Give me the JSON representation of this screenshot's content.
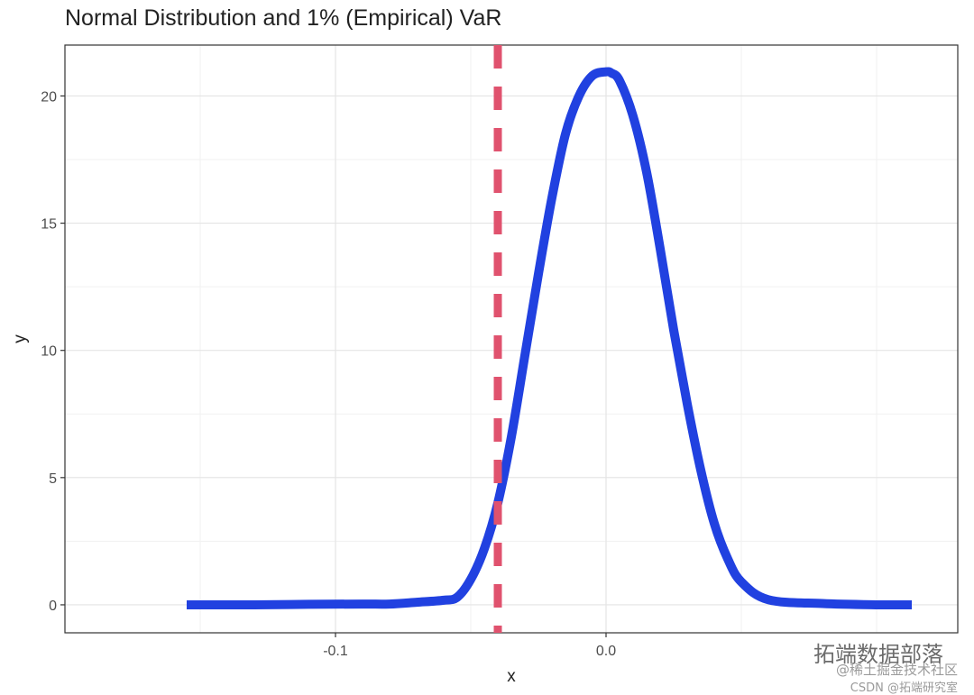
{
  "chart_data": {
    "type": "line",
    "title": "Normal Distribution and 1% (Empirical) VaR",
    "xlabel": "x",
    "ylabel": "y",
    "xlim": [
      -0.2,
      0.13
    ],
    "ylim": [
      -1.1,
      22
    ],
    "x_ticks": [
      -0.1,
      0.0
    ],
    "x_tick_labels": [
      "-0.1",
      "0.0"
    ],
    "y_ticks": [
      0,
      5,
      10,
      15,
      20
    ],
    "y_tick_labels": [
      "0",
      "5",
      "10",
      "15",
      "20"
    ],
    "grid": true,
    "series": [
      {
        "color": "#2141e0",
        "x": [
          -0.155,
          -0.13,
          -0.11,
          -0.09,
          -0.08,
          -0.07,
          -0.06,
          -0.055,
          -0.05,
          -0.045,
          -0.04,
          -0.035,
          -0.03,
          -0.025,
          -0.02,
          -0.015,
          -0.01,
          -0.005,
          0.0,
          0.002,
          0.005,
          0.01,
          0.015,
          0.02,
          0.025,
          0.03,
          0.035,
          0.04,
          0.045,
          0.05,
          0.06,
          0.08,
          0.1,
          0.113
        ],
        "y": [
          0.0,
          0.0,
          0.02,
          0.03,
          0.03,
          0.1,
          0.18,
          0.3,
          1.0,
          2.2,
          4.0,
          6.6,
          9.8,
          13.0,
          16.0,
          18.5,
          20.0,
          20.8,
          20.95,
          20.9,
          20.6,
          19.2,
          17.0,
          14.0,
          10.8,
          7.9,
          5.3,
          3.2,
          1.8,
          0.9,
          0.2,
          0.05,
          0.0,
          0.0
        ]
      }
    ],
    "var_line": {
      "x": -0.04,
      "color": "#e0526e",
      "style": "dashed"
    }
  },
  "watermark": {
    "line1": "拓端数据部落",
    "line2": "@稀土掘金技术社区",
    "line3": "CSDN @拓端研究室"
  }
}
